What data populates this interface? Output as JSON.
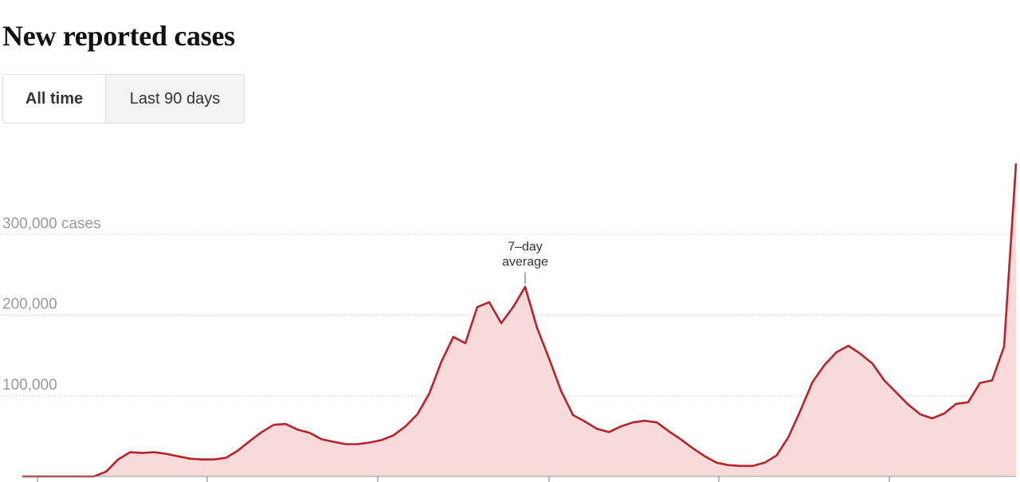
{
  "chart_data": {
    "type": "area",
    "title": "New reported cases",
    "annotation": [
      "7–day",
      "average"
    ],
    "color": "#b5232b",
    "fill": "#f9dada",
    "values": [
      0,
      0,
      0,
      0,
      0,
      0,
      0,
      6000,
      21000,
      30000,
      29000,
      30000,
      28000,
      25000,
      22000,
      21000,
      21000,
      23000,
      32000,
      44000,
      55000,
      64000,
      65000,
      58000,
      54000,
      46000,
      43000,
      40000,
      40000,
      42000,
      45000,
      51000,
      62000,
      77000,
      103000,
      142000,
      173000,
      165000,
      210000,
      216000,
      190000,
      210000,
      235000,
      184000,
      146000,
      106000,
      76000,
      68000,
      59000,
      55000,
      62000,
      67000,
      69000,
      67000,
      56000,
      46000,
      35000,
      25000,
      17000,
      14000,
      13000,
      13000,
      17000,
      26000,
      49000,
      82000,
      117000,
      138000,
      154000,
      162000,
      152000,
      140000,
      119000,
      104000,
      89000,
      77000,
      72000,
      78000,
      90000,
      92000,
      116000,
      119000,
      161000,
      388000
    ],
    "ylim": [
      0,
      400000
    ],
    "yticks": [
      {
        "value": 100000,
        "label": "100,000"
      },
      {
        "value": 200000,
        "label": "200,000"
      },
      {
        "value": 300000,
        "label": "300,000 cases"
      }
    ],
    "grid": true
  },
  "controls": {
    "buttons": [
      "All time",
      "Last 90 days"
    ]
  }
}
